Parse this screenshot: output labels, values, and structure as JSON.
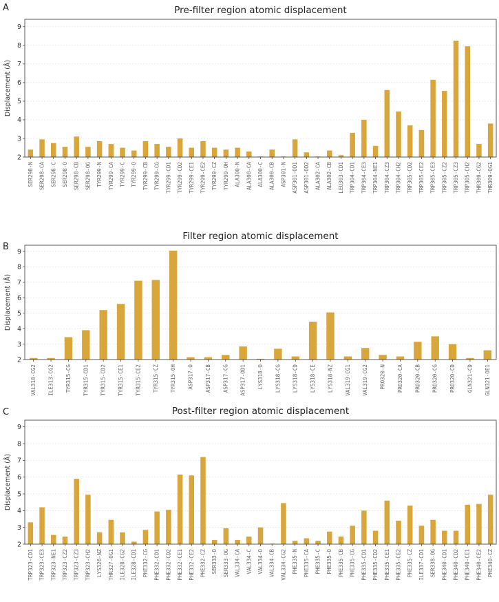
{
  "chart_data": [
    {
      "type": "bar",
      "panel_label": "A",
      "title": "Pre-filter region atomic displacement",
      "xlabel": "",
      "ylabel": "Displacement (Å)",
      "ylim": [
        2,
        9.4
      ],
      "yticks": [
        2,
        3,
        4,
        5,
        6,
        7,
        8,
        9
      ],
      "grid": true,
      "bar_color": "#d9a63c",
      "categories": [
        "SER298-N",
        "SER298-CA",
        "SER298-C",
        "SER298-O",
        "SER298-CB",
        "SER298-OG",
        "TYR299-N",
        "TYR299-CA",
        "TYR299-C",
        "TYR299-O",
        "TYR299-CB",
        "TYR299-CG",
        "TYR299-CD1",
        "TYR299-CD2",
        "TYR299-CE1",
        "TYR299-CE2",
        "TYR299-CZ",
        "TYR299-OH",
        "ALA300-N",
        "ALA300-CA",
        "ALA300-C",
        "ALA300-CB",
        "ASP301-N",
        "ASP301-OD1",
        "ASP301-OD2",
        "ALA302-CA",
        "ALA302-CB",
        "LEU303-CD1",
        "TRP304-CD1",
        "TRP304-CE3",
        "TRP304-NE1",
        "TRP304-CZ3",
        "TRP304-CH2",
        "TRP305-CD2",
        "TRP305-CE2",
        "TRP305-CE3",
        "TRP305-CZ2",
        "TRP305-CZ3",
        "TRP305-CH2",
        "THR309-CG2",
        "THR309-OG1"
      ],
      "values": [
        2.4,
        2.95,
        2.75,
        2.55,
        3.1,
        2.55,
        2.85,
        2.7,
        2.5,
        2.35,
        2.85,
        2.7,
        2.55,
        3.0,
        2.5,
        2.85,
        2.5,
        2.4,
        2.5,
        2.3,
        2.03,
        2.4,
        2.03,
        2.95,
        2.25,
        2.03,
        2.35,
        2.1,
        3.3,
        4.0,
        2.6,
        5.6,
        4.45,
        3.7,
        3.45,
        6.15,
        5.55,
        8.25,
        7.95,
        2.7,
        3.8
      ]
    },
    {
      "type": "bar",
      "panel_label": "B",
      "title": "Filter region atomic displacement",
      "xlabel": "",
      "ylabel": "Displacement (Å)",
      "ylim": [
        2,
        9.4
      ],
      "yticks": [
        2,
        3,
        4,
        5,
        6,
        7,
        8,
        9
      ],
      "grid": true,
      "bar_color": "#d9a63c",
      "categories": [
        "VAL310-CG2",
        "ILE313-CG2",
        "TYR315-CG",
        "TYR315-CD1",
        "TYR315-CD2",
        "TYR315-CE1",
        "TYR315-CE2",
        "TYR315-CZ",
        "TYR315-OH",
        "ASP317-O",
        "ASP317-CB",
        "ASP317-CG",
        "ASP317-OD1",
        "LYS318-O",
        "LYS318-CG",
        "LYS318-CD",
        "LYS318-CE",
        "LYS318-NZ",
        "VAL319-CG1",
        "VAL319-CG2",
        "PRO320-N",
        "PRO320-CA",
        "PRO320-CB",
        "PRO320-CG",
        "PRO320-CD",
        "GLN321-CD",
        "GLN321-OE1"
      ],
      "values": [
        2.1,
        2.1,
        3.45,
        3.9,
        5.2,
        5.6,
        7.1,
        7.15,
        9.05,
        2.15,
        2.15,
        2.3,
        2.85,
        2.05,
        2.7,
        2.2,
        4.45,
        5.05,
        2.2,
        2.75,
        2.3,
        2.2,
        3.15,
        3.5,
        3.0,
        2.1,
        2.6
      ]
    },
    {
      "type": "bar",
      "panel_label": "C",
      "title": "Post-filter region atomic displacement",
      "xlabel": "",
      "ylabel": "Displacement (Å)",
      "ylim": [
        2,
        9.4
      ],
      "yticks": [
        2,
        3,
        4,
        5,
        6,
        7,
        8,
        9
      ],
      "grid": true,
      "bar_color": "#d9a63c",
      "categories": [
        "TRP323-CD1",
        "TRP323-CE3",
        "TRP323-NE1",
        "TRP323-CZ2",
        "TRP323-CZ3",
        "TRP323-CH2",
        "LYS326-NZ",
        "THR327-OG1",
        "ILE328-CG2",
        "ILE328-CD1",
        "PHE332-CG",
        "PHE332-CD1",
        "PHE332-CD2",
        "PHE332-CE1",
        "PHE332-CE2",
        "PHE332-CZ",
        "SER333-O",
        "SER333-OG",
        "VAL334-CA",
        "VAL334-C",
        "VAL334-O",
        "VAL334-CB",
        "VAL334-CG2",
        "PHE335-N",
        "PHE335-CA",
        "PHE335-C",
        "PHE335-O",
        "PHE335-CB",
        "PHE335-CG",
        "PHE335-CD1",
        "PHE335-CD2",
        "PHE335-CE1",
        "PHE335-CE2",
        "PHE335-CZ",
        "ILE337-CD1",
        "SER338-OG",
        "PHE340-CD1",
        "PHE340-CD2",
        "PHE340-CE1",
        "PHE340-CE2",
        "PHE340-CZ"
      ],
      "values": [
        3.3,
        4.2,
        2.55,
        2.45,
        5.9,
        4.95,
        2.7,
        3.45,
        2.7,
        2.15,
        2.85,
        3.95,
        4.05,
        6.15,
        6.1,
        7.2,
        2.25,
        2.95,
        2.25,
        2.45,
        3.0,
        2.03,
        4.45,
        2.2,
        2.35,
        2.2,
        2.75,
        2.45,
        3.1,
        4.0,
        2.8,
        4.6,
        3.4,
        4.3,
        3.1,
        3.45,
        2.8,
        2.8,
        4.35,
        4.4,
        4.95
      ]
    }
  ]
}
